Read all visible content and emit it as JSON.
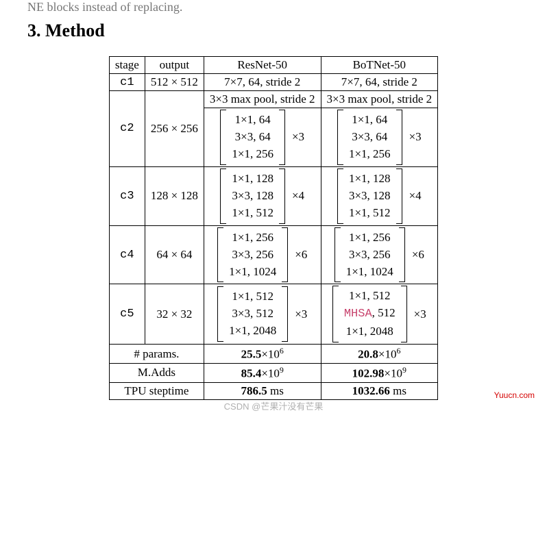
{
  "truncated_text": "NE blocks instead of replacing.",
  "section_title": "3. Method",
  "headers": {
    "stage": "stage",
    "output": "output",
    "resnet": "ResNet-50",
    "botnet": "BoTNet-50"
  },
  "rows": {
    "c1": {
      "stage": "c1",
      "output": "512 × 512",
      "resnet_text": "7×7, 64, stride 2",
      "botnet_text": "7×7, 64, stride 2"
    },
    "c2": {
      "stage": "c2",
      "output": "256 × 256",
      "pool_resnet": "3×3 max pool, stride 2",
      "pool_botnet": "3×3 max pool, stride 2",
      "resnet_block": {
        "lines": [
          "1×1, 64",
          "3×3, 64",
          "1×1, 256"
        ],
        "mult": "×3"
      },
      "botnet_block": {
        "lines": [
          "1×1, 64",
          "3×3, 64",
          "1×1, 256"
        ],
        "mult": "×3"
      }
    },
    "c3": {
      "stage": "c3",
      "output": "128 × 128",
      "resnet_block": {
        "lines": [
          "1×1, 128",
          "3×3, 128",
          "1×1, 512"
        ],
        "mult": "×4"
      },
      "botnet_block": {
        "lines": [
          "1×1, 128",
          "3×3, 128",
          "1×1, 512"
        ],
        "mult": "×4"
      }
    },
    "c4": {
      "stage": "c4",
      "output": "64 × 64",
      "resnet_block": {
        "lines": [
          "1×1, 256",
          "3×3, 256",
          "1×1, 1024"
        ],
        "mult": "×6"
      },
      "botnet_block": {
        "lines": [
          "1×1, 256",
          "3×3, 256",
          "1×1, 1024"
        ],
        "mult": "×6"
      }
    },
    "c5": {
      "stage": "c5",
      "output": "32 × 32",
      "resnet_block": {
        "lines": [
          "1×1, 512",
          "3×3, 512",
          "1×1, 2048"
        ],
        "mult": "×3"
      },
      "botnet_block": {
        "line1": "1×1, 512",
        "line2_prefix": "MHSA",
        "line2_suffix": ", 512",
        "line3": "1×1, 2048",
        "mult": "×3"
      }
    }
  },
  "summary": {
    "params": {
      "label": "# params.",
      "resnet_val": "25.5",
      "resnet_exp": "×10",
      "resnet_sup": "6",
      "botnet_val": "20.8",
      "botnet_exp": "×10",
      "botnet_sup": "6"
    },
    "madds": {
      "label": "M.Adds",
      "resnet_val": "85.4",
      "resnet_exp": "×10",
      "resnet_sup": "9",
      "botnet_val": "102.98",
      "botnet_exp": "×10",
      "botnet_sup": "9"
    },
    "tpu": {
      "label": "TPU steptime",
      "resnet_val": "786.5",
      "resnet_unit": " ms",
      "botnet_val": "1032.66",
      "botnet_unit": " ms"
    }
  },
  "watermark_right": "Yuucn.com",
  "watermark_center": "CSDN @芒果汁没有芒果",
  "colors": {
    "text": "#000000",
    "mhsa": "#c8446e",
    "watermark_right": "#d40000",
    "watermark_center": "#b0b0b0",
    "background": "#ffffff"
  }
}
